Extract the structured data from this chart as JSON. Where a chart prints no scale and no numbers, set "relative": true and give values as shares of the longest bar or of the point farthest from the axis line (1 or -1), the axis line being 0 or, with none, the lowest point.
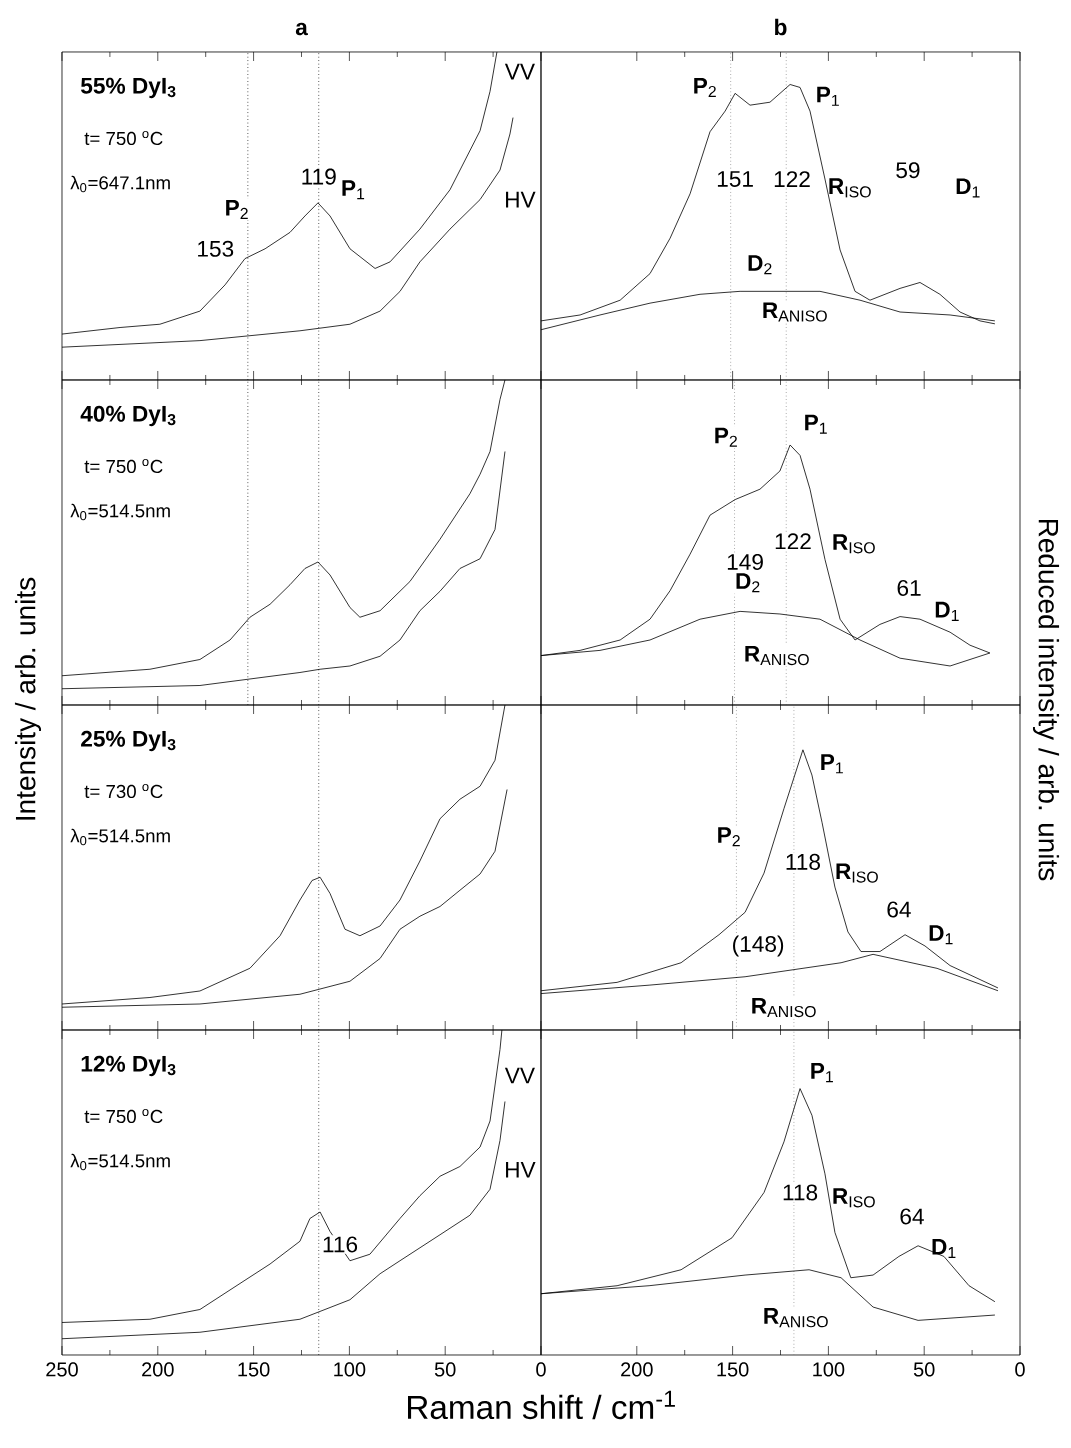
{
  "chart_data": [
    {
      "type": "line",
      "title": "a",
      "relative": true,
      "xlim": [
        250,
        0
      ],
      "xticks": [
        250,
        200,
        150,
        100,
        50,
        0
      ],
      "tick_labels": false,
      "series": [
        {
          "color": "#000000",
          "x": [
            250,
            219.7,
            198.9,
            178,
            164.9,
            154.5,
            144,
            131,
            123.2,
            116.4,
            110.1,
            99.7,
            86.6,
            78.8,
            63.2,
            47.5,
            31.8,
            26.6,
            23
          ],
          "values": [
            0.14,
            0.16,
            0.17,
            0.21,
            0.29,
            0.37,
            0.4,
            0.45,
            0.5,
            0.54,
            0.5,
            0.4,
            0.34,
            0.36,
            0.46,
            0.58,
            0.76,
            0.88,
            1.0
          ]
        },
        {
          "color": "#000000",
          "x": [
            250,
            178,
            125.8,
            99.7,
            84,
            73.6,
            63.2,
            47.5,
            31.8,
            21.4,
            16.2,
            14.6
          ],
          "values": [
            0.1,
            0.12,
            0.15,
            0.17,
            0.21,
            0.27,
            0.36,
            0.46,
            0.55,
            0.64,
            0.75,
            0.8
          ]
        }
      ],
      "ref_lines": [
        {
          "axis": "x",
          "value": 153,
          "color": "#000000",
          "line_style": "dotted"
        },
        {
          "axis": "x",
          "value": 116,
          "color": "#000000",
          "line_style": "dotted"
        }
      ],
      "annotations": [
        "55% DyI$_{3}$",
        "t= 750 $^{o}$C",
        "λ$_{0}$=647.1nm",
        "**P**$_{2}$",
        "153",
        "119",
        "**P**$_{1}$",
        "VV",
        "HV"
      ]
    },
    {
      "type": "line",
      "title": "b",
      "relative": true,
      "xlim": [
        250,
        0
      ],
      "xticks": [
        200,
        150,
        100,
        50,
        0
      ],
      "tick_labels": false,
      "series": [
        {
          "color": "#000000",
          "x": [
            250,
            229.6,
            208.7,
            193.1,
            182.6,
            172.2,
            161.8,
            153.9,
            148.7,
            140.9,
            130.5,
            120,
            114.8,
            109.6,
            101.8,
            93.9,
            86.1,
            78.3,
            62.6,
            52.2,
            41.8,
            31.3,
            20.9,
            13.1
          ],
          "values": [
            0.2,
            0.22,
            0.27,
            0.36,
            0.48,
            0.63,
            0.84,
            0.91,
            0.97,
            0.93,
            0.94,
            1.0,
            0.99,
            0.91,
            0.68,
            0.44,
            0.3,
            0.27,
            0.31,
            0.33,
            0.29,
            0.23,
            0.2,
            0.19
          ]
        },
        {
          "color": "#000000",
          "x": [
            250,
            219.2,
            193.1,
            167,
            146.1,
            125.3,
            104.4,
            83.5,
            62.6,
            36.5,
            13.1
          ],
          "values": [
            0.17,
            0.22,
            0.26,
            0.29,
            0.3,
            0.3,
            0.3,
            0.27,
            0.23,
            0.22,
            0.2
          ]
        }
      ],
      "ref_lines": [
        {
          "axis": "x",
          "value": 151,
          "color": "#808080",
          "line_style": "dotted"
        },
        {
          "axis": "x",
          "value": 122,
          "color": "#808080",
          "line_style": "dotted"
        }
      ],
      "annotations": [
        "**P**$_{2}$",
        "**P**$_{1}$",
        "151",
        "122",
        "**R**$_{ISO}$",
        "59",
        "**D**$_{1}$",
        "**D**$_{2}$",
        "**R**$_{ANISO}$"
      ]
    },
    {
      "type": "line",
      "ylabel": "Intensity / arb. units",
      "relative": true,
      "xlim": [
        250,
        0
      ],
      "xticks": [
        250,
        200,
        150,
        100,
        50,
        0
      ],
      "tick_labels": false,
      "series": [
        {
          "color": "#000000",
          "x": [
            250,
            204.1,
            178,
            162.3,
            151.9,
            141.4,
            131,
            123.2,
            116.4,
            110.1,
            99.7,
            94.5,
            84,
            68.4,
            52.7,
            37.1,
            31.8,
            26.6,
            21.4,
            18.8
          ],
          "values": [
            0.09,
            0.11,
            0.14,
            0.2,
            0.27,
            0.31,
            0.37,
            0.42,
            0.44,
            0.4,
            0.3,
            0.27,
            0.29,
            0.38,
            0.51,
            0.65,
            0.71,
            0.78,
            0.94,
            1.0
          ]
        },
        {
          "color": "#000000",
          "x": [
            250,
            178,
            125.8,
            115.3,
            99.7,
            84,
            73.6,
            63.2,
            52.7,
            42.3,
            31.8,
            24,
            18.8
          ],
          "values": [
            0.05,
            0.06,
            0.1,
            0.11,
            0.12,
            0.15,
            0.2,
            0.29,
            0.35,
            0.42,
            0.45,
            0.54,
            0.78
          ]
        }
      ],
      "ref_lines": [
        {
          "axis": "x",
          "value": 153,
          "color": "#000000",
          "line_style": "dotted"
        },
        {
          "axis": "x",
          "value": 116,
          "color": "#000000",
          "line_style": "dotted"
        }
      ],
      "annotations": [
        "40% DyI$_{3}$",
        "t= 750 $^{o}$C",
        "λ$_{0}$=514.5nm"
      ]
    },
    {
      "type": "line",
      "ylabel": "Reduced intensity / arb. units",
      "relative": true,
      "xlim": [
        250,
        0
      ],
      "xticks": [
        200,
        150,
        100,
        50,
        0
      ],
      "tick_labels": false,
      "series": [
        {
          "color": "#000000",
          "x": [
            250,
            229.6,
            208.7,
            193.1,
            182.6,
            172.2,
            161.8,
            148.7,
            135.7,
            125.3,
            120,
            114.8,
            109.6,
            101.8,
            93.9,
            86.1,
            73.1,
            62.6,
            52.2,
            36.5,
            26.1,
            15.7
          ],
          "values": [
            0.19,
            0.21,
            0.25,
            0.33,
            0.44,
            0.58,
            0.73,
            0.79,
            0.83,
            0.9,
            1.0,
            0.96,
            0.83,
            0.56,
            0.33,
            0.25,
            0.31,
            0.34,
            0.33,
            0.28,
            0.23,
            0.2
          ]
        },
        {
          "color": "#000000",
          "x": [
            250,
            219.2,
            193.1,
            167,
            146.1,
            125.3,
            104.4,
            83.5,
            62.6,
            36.5,
            15.7
          ],
          "values": [
            0.19,
            0.21,
            0.25,
            0.33,
            0.36,
            0.35,
            0.33,
            0.25,
            0.18,
            0.15,
            0.2
          ]
        }
      ],
      "ref_lines": [
        {
          "axis": "x",
          "value": 149,
          "color": "#808080",
          "line_style": "dotted"
        },
        {
          "axis": "x",
          "value": 122,
          "color": "#808080",
          "line_style": "dotted"
        }
      ],
      "annotations": [
        "**P**$_{2}$",
        "**P**$_{1}$",
        "149",
        "122",
        "**R**$_{ISO}$",
        "61",
        "**D**$_{1}$",
        "**D**$_{2}$",
        "**R**$_{ANISO}$"
      ]
    },
    {
      "type": "line",
      "relative": true,
      "xlim": [
        250,
        0
      ],
      "xticks": [
        250,
        200,
        150,
        100,
        50,
        0
      ],
      "tick_labels": false,
      "series": [
        {
          "color": "#000000",
          "x": [
            250,
            204.1,
            178,
            151.9,
            136.2,
            125.8,
            119.5,
            115.3,
            110.1,
            102.3,
            94.5,
            84,
            73.6,
            63.2,
            52.7,
            42.3,
            31.8,
            24,
            18.8
          ],
          "values": [
            0.08,
            0.1,
            0.12,
            0.19,
            0.29,
            0.4,
            0.46,
            0.47,
            0.42,
            0.31,
            0.29,
            0.32,
            0.4,
            0.52,
            0.65,
            0.71,
            0.75,
            0.83,
            1.0
          ]
        },
        {
          "color": "#000000",
          "x": [
            250,
            178,
            125.8,
            99.7,
            84,
            73.6,
            63.2,
            52.7,
            42.3,
            31.8,
            24,
            17.7
          ],
          "values": [
            0.07,
            0.08,
            0.11,
            0.15,
            0.22,
            0.31,
            0.35,
            0.38,
            0.43,
            0.48,
            0.55,
            0.74
          ]
        }
      ],
      "ref_lines": [
        {
          "axis": "x",
          "value": 116,
          "color": "#000000",
          "line_style": "dotted"
        }
      ],
      "annotations": [
        "25% DyI$_{3}$",
        "t= 730 $^{o}$C",
        "λ$_{0}$=514.5nm"
      ]
    },
    {
      "type": "line",
      "relative": true,
      "xlim": [
        250,
        0
      ],
      "tick_labels": false,
      "series": [
        {
          "color": "#000000",
          "x": [
            250,
            210.3,
            176.9,
            157.1,
            143.5,
            133.6,
            123.2,
            113.3,
            108.6,
            103.3,
            96.6,
            89.8,
            83,
            73.1,
            60,
            49.6,
            36.5,
            11.5
          ],
          "values": [
            0.14,
            0.17,
            0.24,
            0.34,
            0.42,
            0.56,
            0.79,
            1.0,
            0.91,
            0.74,
            0.51,
            0.35,
            0.28,
            0.28,
            0.34,
            0.3,
            0.23,
            0.15
          ]
        },
        {
          "color": "#000000",
          "x": [
            250,
            193.6,
            143.5,
            93.4,
            76.7,
            43.3,
            11.5
          ],
          "values": [
            0.13,
            0.16,
            0.19,
            0.24,
            0.27,
            0.22,
            0.14
          ]
        }
      ],
      "ref_lines": [
        {
          "axis": "x",
          "value": 148,
          "color": "#808080",
          "line_style": "dotted"
        },
        {
          "axis": "x",
          "value": 118,
          "color": "#808080",
          "line_style": "dotted"
        }
      ],
      "xticks": [
        200,
        150,
        100,
        50,
        0
      ],
      "annotations": [
        "**P**$_{1}$",
        "**P**$_{2}$",
        "118",
        "**R**$_{ISO}$",
        "(148)",
        "64",
        "**D**$_{1}$",
        "**R**$_{ANISO}$"
      ]
    },
    {
      "type": "line",
      "xlabel": "Raman shift / cm$^{-1}$",
      "relative": true,
      "xlim": [
        250,
        0
      ],
      "xticks": [
        250,
        200,
        150,
        100,
        50,
        0
      ],
      "tick_labels": "x",
      "series": [
        {
          "color": "#000000",
          "x": [
            250,
            204.1,
            178,
            157.1,
            141.4,
            125.8,
            120.6,
            115.3,
            110.1,
            99.7,
            89.3,
            73.6,
            63.2,
            52.7,
            42.3,
            31.8,
            26.6,
            21.4,
            20.4
          ],
          "values": [
            0.1,
            0.11,
            0.14,
            0.22,
            0.28,
            0.35,
            0.42,
            0.44,
            0.38,
            0.29,
            0.31,
            0.42,
            0.49,
            0.55,
            0.58,
            0.64,
            0.72,
            0.94,
            1.0
          ]
        },
        {
          "color": "#000000",
          "x": [
            250,
            178,
            125.8,
            99.7,
            84,
            73.6,
            52.7,
            37.1,
            26.6,
            21.4,
            18.8
          ],
          "values": [
            0.05,
            0.07,
            0.11,
            0.17,
            0.25,
            0.29,
            0.37,
            0.43,
            0.51,
            0.66,
            0.78
          ]
        }
      ],
      "ref_lines": [
        {
          "axis": "x",
          "value": 116,
          "color": "#000000",
          "line_style": "dotted"
        }
      ],
      "annotations": [
        "12% DyI$_{3}$",
        "t= 750 $^{o}$C",
        "λ$_{0}$=514.5nm",
        "116",
        "VV",
        "HV"
      ]
    },
    {
      "type": "line",
      "relative": true,
      "xlim": [
        250,
        0
      ],
      "xticks": [
        200,
        150,
        100,
        50,
        0
      ],
      "tick_labels": "x",
      "series": [
        {
          "color": "#000000",
          "x": [
            250,
            210.3,
            176.9,
            150.3,
            133.6,
            123.2,
            114.8,
            108.6,
            101.8,
            96.6,
            88.3,
            76.7,
            63.2,
            53.2,
            39.7,
            26.6,
            13.1
          ],
          "values": [
            0.23,
            0.26,
            0.32,
            0.44,
            0.61,
            0.8,
            1.0,
            0.9,
            0.68,
            0.46,
            0.29,
            0.3,
            0.37,
            0.41,
            0.37,
            0.26,
            0.2
          ]
        },
        {
          "color": "#000000",
          "x": [
            250,
            193.6,
            143.5,
            110.1,
            93.4,
            76.7,
            53.2,
            13.1
          ],
          "values": [
            0.23,
            0.26,
            0.3,
            0.32,
            0.29,
            0.18,
            0.13,
            0.15
          ]
        }
      ],
      "ref_lines": [
        {
          "axis": "x",
          "value": 118,
          "color": "#808080",
          "line_style": "dotted"
        }
      ],
      "annotations": [
        "**P**$_{1}$",
        "118",
        "**R**$_{ISO}$",
        "64",
        "**D**$_{1}$",
        "**R**$_{ANISO}$"
      ]
    }
  ]
}
